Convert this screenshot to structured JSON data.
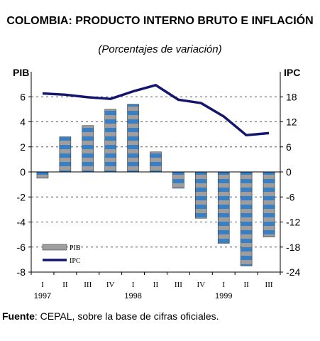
{
  "chart_data": {
    "type": "bar+line",
    "title": "COLOMBIA: PRODUCTO INTERNO BRUTO E INFLACIÓN",
    "subtitle": "(Porcentajes de variación)",
    "ylabel_left": "PIB",
    "ylabel_right": "IPC",
    "ylim_left": [
      -8,
      8
    ],
    "ylim_right": [
      -24,
      24
    ],
    "yticks_left": [
      "-8",
      "-6",
      "-4",
      "-2",
      "0",
      "2",
      "4",
      "6"
    ],
    "yticks_right": [
      "-24",
      "-18",
      "-12",
      "-6",
      "0",
      "6",
      "12",
      "18"
    ],
    "yticks_left_values": [
      -8,
      -6,
      -4,
      -2,
      0,
      2,
      4,
      6
    ],
    "yticks_right_values": [
      -24,
      -18,
      -12,
      -6,
      0,
      6,
      12,
      18
    ],
    "categories": [
      "I",
      "II",
      "III",
      "IV",
      "I",
      "II",
      "III",
      "IV",
      "I",
      "II",
      "III"
    ],
    "year_labels": [
      {
        "label": "1997",
        "index": 0
      },
      {
        "label": "1998",
        "index": 4
      },
      {
        "label": "1999",
        "index": 8
      }
    ],
    "grid": "dashed horizontal",
    "legend_position": "bottom-left",
    "series": [
      {
        "name": "PIB",
        "type": "bar",
        "axis": "left",
        "values": [
          -0.5,
          2.8,
          3.7,
          5.0,
          5.4,
          1.6,
          -1.3,
          -3.7,
          -5.7,
          -7.5,
          -5.2
        ]
      },
      {
        "name": "IPC",
        "type": "line",
        "axis": "right",
        "values": [
          18.8,
          18.5,
          17.9,
          17.5,
          19.3,
          20.8,
          17.3,
          16.5,
          13.3,
          8.8,
          9.3
        ]
      }
    ],
    "colors": {
      "bar_stripe_a": "#3a7fc1",
      "bar_stripe_b": "#9e9e9e",
      "line": "#14166e"
    }
  },
  "source": {
    "label": "Fuente",
    "text": ": CEPAL, sobre la base de cifras oficiales."
  }
}
